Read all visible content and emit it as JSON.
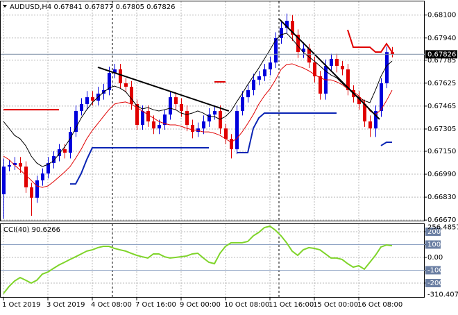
{
  "chart_data": [
    {
      "type": "candlestick",
      "symbol": "AUDUSD,H4",
      "categories": [
        "1 Oct 2019",
        null,
        null,
        null,
        null,
        null,
        null,
        null,
        "3 Oct 2019",
        null,
        null,
        null,
        null,
        null,
        null,
        null,
        "4 Oct 08:00",
        null,
        null,
        null,
        null,
        null,
        null,
        null,
        "7 Oct 16:00",
        null,
        null,
        null,
        null,
        null,
        null,
        null,
        "9 Oct 00:00",
        null,
        null,
        null,
        null,
        null,
        null,
        null,
        "10 Oct 08:00",
        null,
        null,
        null,
        null,
        null,
        null,
        null,
        "11 Oct 16:00",
        null,
        null,
        null,
        null,
        null,
        null,
        null,
        "15 Oct 00:00",
        null,
        null,
        null,
        null,
        null,
        null,
        null,
        "16 Oct 08:00",
        null,
        null,
        null,
        null,
        null,
        null
      ],
      "open": [
        0.6685,
        0.67043,
        0.67053,
        0.67068,
        0.67043,
        0.66898,
        0.66826,
        0.66947,
        0.66995,
        0.67068,
        0.67116,
        0.67164,
        0.6714,
        0.67285,
        0.67431,
        0.67479,
        0.67527,
        0.67503,
        0.67552,
        0.67576,
        0.67697,
        0.67721,
        0.67624,
        0.676,
        0.67479,
        0.67334,
        0.67431,
        0.67358,
        0.67309,
        0.67334,
        0.67406,
        0.67527,
        0.67479,
        0.67431,
        0.67334,
        0.67285,
        0.67309,
        0.67358,
        0.67406,
        0.67431,
        0.67309,
        0.67237,
        0.67164,
        0.67431,
        0.67527,
        0.67576,
        0.67649,
        0.67673,
        0.67721,
        0.67769,
        0.67939,
        0.68011,
        0.6806,
        0.67963,
        0.67842,
        0.67866,
        0.67769,
        0.67673,
        0.67552,
        0.67745,
        0.67794,
        0.67745,
        0.67721,
        0.67576,
        0.67527,
        0.67479,
        0.67358,
        0.67309,
        0.67431,
        0.67624,
        0.67841
      ],
      "high": [
        0.671,
        0.6709,
        0.6711,
        0.6711,
        0.6708,
        0.6693,
        0.6698,
        0.6703,
        0.6711,
        0.6715,
        0.672,
        0.672,
        0.6732,
        0.6747,
        0.6752,
        0.6757,
        0.6757,
        0.676,
        0.6762,
        0.6774,
        0.6776,
        0.6776,
        0.6766,
        0.6764,
        0.6751,
        0.6747,
        0.6747,
        0.674,
        0.6737,
        0.6744,
        0.6757,
        0.6756,
        0.6752,
        0.6747,
        0.6737,
        0.6735,
        0.674,
        0.6745,
        0.6747,
        0.6747,
        0.6734,
        0.6727,
        0.6747,
        0.6757,
        0.6762,
        0.6769,
        0.6771,
        0.6776,
        0.6781,
        0.6798,
        0.6805,
        0.6811,
        0.681,
        0.68,
        0.6791,
        0.679,
        0.6781,
        0.6771,
        0.6779,
        0.6783,
        0.6783,
        0.6778,
        0.6776,
        0.6761,
        0.6757,
        0.6751,
        0.674,
        0.6747,
        0.6766,
        0.6788,
        0.67877
      ],
      "low": [
        0.6668,
        0.6701,
        0.6702,
        0.67,
        0.6686,
        0.667,
        0.6679,
        0.6691,
        0.6696,
        0.6703,
        0.6708,
        0.671,
        0.671,
        0.6725,
        0.674,
        0.6744,
        0.6747,
        0.6747,
        0.6751,
        0.6754,
        0.6766,
        0.6759,
        0.6756,
        0.6744,
        0.673,
        0.673,
        0.6732,
        0.6727,
        0.6727,
        0.673,
        0.6737,
        0.6744,
        0.6739,
        0.6729,
        0.6724,
        0.6725,
        0.6727,
        0.6732,
        0.6737,
        0.6727,
        0.672,
        0.671,
        0.6713,
        0.674,
        0.6749,
        0.6754,
        0.6761,
        0.6764,
        0.6768,
        0.6773,
        0.679,
        0.6797,
        0.6792,
        0.678,
        0.678,
        0.6773,
        0.6763,
        0.6751,
        0.6751,
        0.6771,
        0.677,
        0.6768,
        0.6754,
        0.6749,
        0.6744,
        0.6732,
        0.6725,
        0.6725,
        0.6739,
        0.6759,
        0.67805
      ],
      "close": [
        0.67043,
        0.67053,
        0.67068,
        0.67043,
        0.66898,
        0.66826,
        0.66947,
        0.66995,
        0.67068,
        0.67116,
        0.67164,
        0.6714,
        0.67285,
        0.67431,
        0.67479,
        0.67527,
        0.67503,
        0.67552,
        0.67576,
        0.67697,
        0.67721,
        0.67624,
        0.676,
        0.67479,
        0.67334,
        0.67431,
        0.67358,
        0.67309,
        0.67334,
        0.67406,
        0.67527,
        0.67479,
        0.67431,
        0.67334,
        0.67285,
        0.67309,
        0.67358,
        0.67406,
        0.67431,
        0.67309,
        0.67237,
        0.67164,
        0.67431,
        0.67527,
        0.67576,
        0.67649,
        0.67673,
        0.67721,
        0.67769,
        0.67939,
        0.68011,
        0.6806,
        0.67963,
        0.67842,
        0.67866,
        0.67769,
        0.67673,
        0.67552,
        0.67745,
        0.67794,
        0.67745,
        0.67721,
        0.67576,
        0.67527,
        0.67479,
        0.67358,
        0.67309,
        0.67431,
        0.67624,
        0.67841,
        0.67826
      ],
      "up_color": "#0000dc",
      "down_color": "#e00000",
      "series": [
        {
          "color": "#000000",
          "values": [
            0.67358,
            0.6731,
            0.67261,
            0.67237,
            0.67189,
            0.67116,
            0.67068,
            0.67043,
            0.67058,
            0.67082,
            0.67131,
            0.67179,
            0.67237,
            0.6731,
            0.67382,
            0.6744,
            0.67489,
            0.67527,
            0.67561,
            0.6759,
            0.67605,
            0.6759,
            0.67566,
            0.67518,
            0.67469,
            0.67445,
            0.67455,
            0.6744,
            0.67431,
            0.6744,
            0.6745,
            0.6744,
            0.67416,
            0.67406,
            0.67416,
            0.67431,
            0.67416,
            0.67392,
            0.67392,
            0.67373,
            0.67392,
            0.67431,
            0.67494,
            0.67552,
            0.67615,
            0.67673,
            0.67731,
            0.67794,
            0.67857,
            0.67924,
            0.67963,
            0.67973,
            0.67934,
            0.67886,
            0.67842,
            0.67808,
            0.67779,
            0.67745,
            0.67711,
            0.67682,
            0.67663,
            0.67624,
            0.6759,
            0.67552,
            0.67527,
            0.67503,
            0.67489,
            0.67576,
            0.67673,
            0.67745,
            0.67779
          ]
        },
        {
          "color": "#e00000",
          "values": [
            0.67116,
            0.67092,
            0.67053,
            0.67019,
            0.66985,
            0.66947,
            0.66908,
            0.66898,
            0.66908,
            0.66937,
            0.66971,
            0.67005,
            0.67043,
            0.67101,
            0.67164,
            0.67237,
            0.67295,
            0.67343,
            0.67392,
            0.6744,
            0.67479,
            0.67489,
            0.67494,
            0.67479,
            0.67455,
            0.67431,
            0.67406,
            0.67382,
            0.67358,
            0.67343,
            0.67334,
            0.67334,
            0.67324,
            0.6731,
            0.673,
            0.67295,
            0.67285,
            0.67285,
            0.67276,
            0.67261,
            0.67237,
            0.67213,
            0.67237,
            0.67285,
            0.67343,
            0.67406,
            0.67479,
            0.67537,
            0.67585,
            0.67648,
            0.67721,
            0.67755,
            0.6776,
            0.67745,
            0.67731,
            0.67711,
            0.67687,
            0.67663,
            0.67648,
            0.67648,
            0.67634,
            0.67615,
            0.67585,
            0.67566,
            0.67537,
            0.67489,
            0.67431,
            0.67406,
            0.6744,
            0.67503,
            0.67576
          ]
        },
        {
          "color": "#e00000",
          "step": true,
          "values": [
            0.6744,
            0.6744,
            0.6744,
            0.6744,
            0.6744,
            0.6744,
            0.6744,
            0.6744,
            0.6744,
            0.6744,
            0.6744,
            null,
            null,
            null,
            null,
            null,
            null,
            null,
            null,
            null,
            null,
            null,
            null,
            null,
            null,
            null,
            null,
            null,
            null,
            null,
            null,
            null,
            null,
            null,
            null,
            null,
            null,
            null,
            0.67634,
            0.67634,
            0.67634,
            null,
            null,
            null,
            null,
            null,
            null,
            null,
            null,
            null,
            null,
            null,
            null,
            null,
            null,
            null,
            null,
            null,
            null,
            null,
            null,
            null,
            0.67997,
            0.67876,
            0.67876,
            0.67876,
            0.67876,
            0.67842,
            0.67842,
            0.679,
            0.67842
          ]
        },
        {
          "color": "#0a24b4",
          "step": true,
          "values": [
            null,
            null,
            null,
            null,
            null,
            null,
            null,
            null,
            null,
            null,
            null,
            null,
            0.66922,
            0.66922,
            0.66995,
            0.67092,
            0.67174,
            0.67174,
            0.67174,
            0.67174,
            0.67174,
            0.67174,
            0.67174,
            0.67174,
            0.67174,
            0.67174,
            0.67174,
            0.67174,
            0.67174,
            0.67174,
            0.67174,
            0.67174,
            0.67174,
            0.67174,
            0.67174,
            0.67174,
            0.67174,
            0.67174,
            null,
            null,
            null,
            null,
            0.6714,
            0.6714,
            0.6714,
            0.6731,
            0.67382,
            0.67416,
            0.67416,
            0.67416,
            0.67416,
            0.67416,
            0.67416,
            0.67416,
            0.67416,
            0.67416,
            0.67416,
            0.67416,
            0.67416,
            0.67416,
            0.67416,
            null,
            null,
            null,
            null,
            null,
            null,
            null,
            0.67189,
            0.67213,
            0.67213
          ]
        }
      ],
      "trendlines": [
        {
          "start": [
            17,
            0.67736
          ],
          "end": [
            40.6,
            0.67431
          ]
        },
        {
          "start": [
            49.75,
            0.68069
          ],
          "end": [
            67.75,
            0.67373
          ]
        }
      ],
      "current_price_color": "#7f8fa6",
      "ylim": [
        0.66666,
        0.68205
      ],
      "yticks": [
        {
          "value": 0.681,
          "label": "0.68100"
        },
        {
          "value": 0.6794,
          "label": "0.67940"
        },
        0.67785,
        0.67625,
        0.67465,
        0.67305,
        {
          "value": 0.6715,
          "label": "0.67150"
        },
        {
          "value": 0.6699,
          "label": "0.66990"
        },
        {
          "value": 0.6683,
          "label": "0.66830"
        },
        {
          "value": 0.6667,
          "label": "0.66670"
        }
      ],
      "grid": true
    },
    {
      "type": "line",
      "title": "CCI(40)",
      "color": "#7fd42a",
      "values": [
        -281,
        -227,
        -184,
        -157,
        -178,
        -200,
        -178,
        -130,
        -114,
        -86,
        -59,
        -38,
        -16,
        5,
        27,
        49,
        59,
        76,
        86,
        86,
        70,
        59,
        49,
        32,
        16,
        5,
        -5,
        27,
        27,
        5,
        -5,
        0,
        5,
        11,
        27,
        32,
        -5,
        -38,
        -49,
        32,
        86,
        114,
        114,
        114,
        124,
        168,
        195,
        232,
        243,
        211,
        168,
        114,
        49,
        16,
        59,
        76,
        70,
        59,
        27,
        -5,
        -5,
        -16,
        -49,
        -76,
        -65,
        -92,
        -38,
        16,
        81,
        97,
        90.6266
      ],
      "ylim": [
        -310.4074,
        256.4857
      ],
      "yticks": [
        200,
        100,
        {
          "value": 0,
          "label": "0.00"
        },
        -100,
        -200
      ],
      "levels": [
        100,
        -100
      ],
      "level_color": "#8fa3c4",
      "grid": true
    }
  ]
}
